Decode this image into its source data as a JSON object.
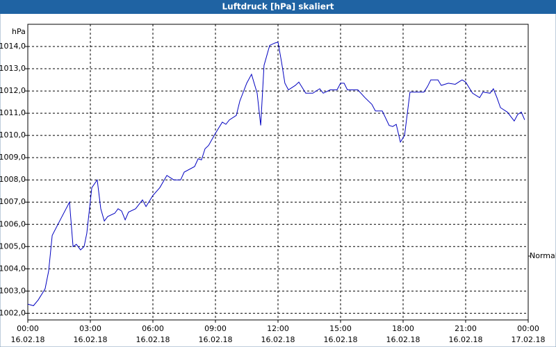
{
  "chart_data": {
    "type": "line",
    "title": "Luftdruck [hPa] skaliert",
    "y_label": "hPa",
    "xlim": [
      0,
      24
    ],
    "ylim": [
      1001.7,
      1015
    ],
    "xticks": [
      {
        "value": 0,
        "label": "00:00"
      },
      {
        "value": 3,
        "label": "03:00"
      },
      {
        "value": 6,
        "label": "06:00"
      },
      {
        "value": 9,
        "label": "09:00"
      },
      {
        "value": 12,
        "label": "12:00"
      },
      {
        "value": 15,
        "label": "15:00"
      },
      {
        "value": 18,
        "label": "18:00"
      },
      {
        "value": 21,
        "label": "21:00"
      },
      {
        "value": 24,
        "label": "00:00"
      }
    ],
    "xtick_dates": [
      "16.02.18",
      "16.02.18",
      "16.02.18",
      "16.02.18",
      "16.02.18",
      "16.02.18",
      "16.02.18",
      "16.02.18",
      "17.02.18"
    ],
    "yticks": [
      {
        "value": 1002,
        "label": "1002,0"
      },
      {
        "value": 1003,
        "label": "1003,0"
      },
      {
        "value": 1004,
        "label": "1004,0"
      },
      {
        "value": 1005,
        "label": "1005,0"
      },
      {
        "value": 1006,
        "label": "1006,0"
      },
      {
        "value": 1007,
        "label": "1007,0"
      },
      {
        "value": 1008,
        "label": "1008,0"
      },
      {
        "value": 1009,
        "label": "1009,0"
      },
      {
        "value": 1010,
        "label": "1010,0"
      },
      {
        "value": 1011,
        "label": "1011,0"
      },
      {
        "value": 1012,
        "label": "1012,0"
      },
      {
        "value": 1013,
        "label": "1013,0"
      },
      {
        "value": 1014,
        "label": "1014,0"
      }
    ],
    "grid": true,
    "series": [
      {
        "name": "Normal",
        "color": "#0000c0",
        "x": [
          0,
          0.27,
          0.5,
          0.83,
          1.0,
          1.17,
          1.5,
          2.0,
          2.17,
          2.33,
          2.53,
          2.7,
          2.83,
          3.07,
          3.33,
          3.5,
          3.67,
          3.83,
          4.17,
          4.33,
          4.5,
          4.67,
          4.83,
          5.17,
          5.5,
          5.67,
          6.0,
          6.33,
          6.67,
          7.0,
          7.33,
          7.5,
          8.0,
          8.17,
          8.33,
          8.5,
          8.67,
          9.0,
          9.33,
          9.5,
          9.67,
          10.0,
          10.17,
          10.5,
          10.73,
          11.0,
          11.17,
          11.33,
          11.6,
          11.83,
          12.0,
          12.17,
          12.33,
          12.5,
          12.83,
          13.0,
          13.33,
          13.67,
          14.0,
          14.17,
          14.5,
          14.83,
          15.0,
          15.17,
          15.33,
          15.83,
          16.17,
          16.5,
          16.67,
          17.0,
          17.33,
          17.5,
          17.67,
          17.87,
          18.07,
          18.33,
          18.67,
          19.0,
          19.17,
          19.33,
          19.67,
          19.83,
          20.17,
          20.5,
          20.83,
          21.0,
          21.33,
          21.67,
          21.83,
          22.17,
          22.33,
          22.5,
          22.67,
          23.0,
          23.33,
          23.5,
          23.67,
          23.83
        ],
        "values": [
          1002.41,
          1002.34,
          1002.6,
          1003.1,
          1003.9,
          1005.5,
          1006.1,
          1007.0,
          1005.0,
          1005.1,
          1004.85,
          1005.0,
          1005.6,
          1007.65,
          1008.0,
          1006.7,
          1006.15,
          1006.35,
          1006.5,
          1006.7,
          1006.6,
          1006.2,
          1006.55,
          1006.7,
          1007.1,
          1006.8,
          1007.3,
          1007.65,
          1008.2,
          1008.0,
          1008.0,
          1008.35,
          1008.6,
          1008.95,
          1008.9,
          1009.4,
          1009.55,
          1010.1,
          1010.6,
          1010.5,
          1010.7,
          1010.9,
          1011.55,
          1012.35,
          1012.75,
          1011.9,
          1010.45,
          1013.15,
          1014.05,
          1014.15,
          1014.2,
          1013.3,
          1012.35,
          1012.05,
          1012.25,
          1012.4,
          1011.9,
          1011.9,
          1012.1,
          1011.9,
          1012.05,
          1012.05,
          1012.35,
          1012.35,
          1012.05,
          1012.05,
          1011.7,
          1011.4,
          1011.1,
          1011.1,
          1010.45,
          1010.4,
          1010.5,
          1009.7,
          1010.0,
          1011.95,
          1011.95,
          1011.95,
          1012.2,
          1012.5,
          1012.5,
          1012.25,
          1012.35,
          1012.3,
          1012.5,
          1012.4,
          1011.9,
          1011.7,
          1011.95,
          1011.9,
          1012.1,
          1011.7,
          1011.25,
          1011.05,
          1010.65,
          1010.95,
          1011.05,
          1010.7
        ]
      }
    ]
  }
}
